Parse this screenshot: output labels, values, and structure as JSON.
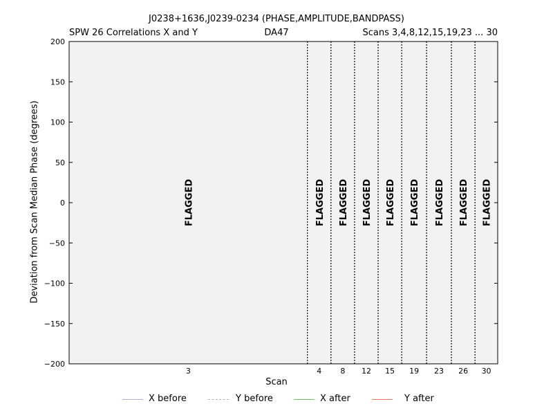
{
  "header": {
    "title": "J0238+1636,J0239-0234 (PHASE,AMPLITUDE,BANDPASS)",
    "subtitle_left": "SPW 26 Correlations X and Y",
    "subtitle_center": "DA47",
    "subtitle_right": "Scans 3,4,8,12,15,19,23 ... 30"
  },
  "colors": {
    "plot_background": "#f2f2f2",
    "x_before": "#aab6d8",
    "y_before": "#b0b0b0",
    "x_after": "#6abf5a",
    "y_after": "#f0776b"
  },
  "legend": [
    {
      "label": "X before",
      "style": "solid",
      "color": "#aab6d8"
    },
    {
      "label": "Y before",
      "style": "dashed",
      "color": "#b0b0b0"
    },
    {
      "label": "X after",
      "style": "solid",
      "color": "#6abf5a"
    },
    {
      "label": "Y after",
      "style": "solid",
      "color": "#f0776b"
    }
  ],
  "chart_data": {
    "type": "scatter",
    "title": "J0238+1636,J0239-0234 (PHASE,AMPLITUDE,BANDPASS)",
    "xlabel": "Scan",
    "ylabel": "Deviation from Scan Median Phase (degrees)",
    "ylim": [
      -200,
      200
    ],
    "yticks": [
      200,
      150,
      100,
      50,
      0,
      -50,
      -100,
      -150,
      -200
    ],
    "ytick_labels": [
      "200",
      "150",
      "100",
      "50",
      "0",
      "−50",
      "−100",
      "−150",
      "−200"
    ],
    "scans": [
      {
        "label": "3",
        "start": 0.0,
        "end": 0.556
      },
      {
        "label": "4",
        "start": 0.556,
        "end": 0.611
      },
      {
        "label": "8",
        "start": 0.611,
        "end": 0.666
      },
      {
        "label": "12",
        "start": 0.666,
        "end": 0.721
      },
      {
        "label": "15",
        "start": 0.721,
        "end": 0.776
      },
      {
        "label": "19",
        "start": 0.776,
        "end": 0.834
      },
      {
        "label": "23",
        "start": 0.834,
        "end": 0.892
      },
      {
        "label": "26",
        "start": 0.892,
        "end": 0.947
      },
      {
        "label": "30",
        "start": 0.947,
        "end": 1.0
      }
    ],
    "flag_text": "FLAGGED",
    "series": [
      {
        "name": "X before",
        "values": []
      },
      {
        "name": "Y before",
        "values": []
      },
      {
        "name": "X after",
        "values": []
      },
      {
        "name": "Y after",
        "values": []
      }
    ],
    "grid": false,
    "legend_position": "bottom"
  }
}
